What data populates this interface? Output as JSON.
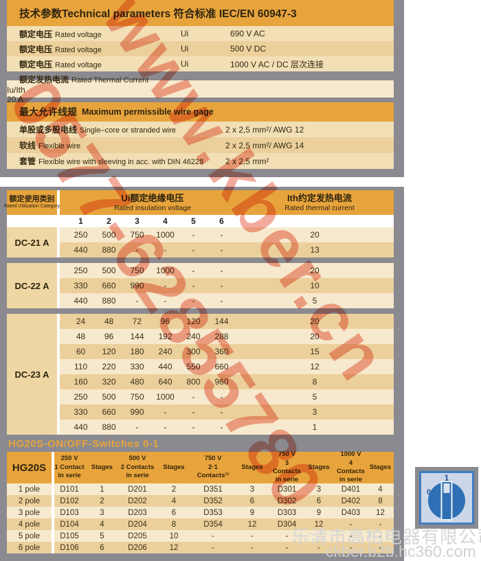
{
  "colors": {
    "accent_orange": "#E8A43C",
    "page_gray": "#8A8A90",
    "row_cream": "#F7E9CD",
    "row_tan": "#ECD09C",
    "switch_blue": "#2E6FB5"
  },
  "watermark": {
    "diag_line1": "www.kber.cn",
    "diag_line2": "0577-62855780",
    "company": "乐清市高柏电器有限公司",
    "site": "ckber.b2b.hc360.com"
  },
  "tech_params": {
    "title": "技术参数Technical parameters 符合标准 IEC/EN 60947-3",
    "rows": [
      {
        "zh": "额定电压",
        "en": "Rated voltage",
        "sym": "Ui",
        "val": "690 V AC"
      },
      {
        "zh": "额定电压",
        "en": "Rated voltage",
        "sym": "Ui",
        "val": "500 V DC"
      },
      {
        "zh": "额定电压",
        "en": "Rated voltage",
        "sym": "Ui",
        "val": "1000 V AC / DC 层次连接"
      }
    ],
    "thermal_row": {
      "zh": "额定发热电流",
      "en": "Rated Thermal Current",
      "sym": "Iu/Ith",
      "val": "20 A"
    }
  },
  "wire_gage": {
    "title_zh": "最大允许线规",
    "title_en": "Maximum permissible wire gage",
    "rows": [
      {
        "zh": "单股或多股电线",
        "en": "Single–core or stranded wire",
        "val": "2 x 2,5 mm²/ AWG 12"
      },
      {
        "zh": "软线",
        "en": "Flexible wire",
        "val": "2 x 2,5 mm²/ AWG 14"
      },
      {
        "zh": "套管",
        "en": "Flexible wire with sleeving in acc. with DIN 46228",
        "val": "2 x 2,5 mm²"
      }
    ]
  },
  "utilization_table": {
    "col1_zh": "额定使用类别",
    "col1_en": "Rated Utilization Category",
    "col2_zh": "Ui额定绝缘电压",
    "col2_en": "Rated insulation voltage",
    "col3_zh": "Ith约定发热电流",
    "col3_en": "Rated thermal current",
    "number_headers": [
      "1",
      "2",
      "3",
      "4",
      "5",
      "6"
    ],
    "blocks": [
      {
        "category": "DC-21 A",
        "rows": [
          {
            "values": [
              "250",
              "500",
              "750",
              "1000",
              "-",
              "-"
            ],
            "ith": "20"
          },
          {
            "values": [
              "440",
              "880",
              "-",
              "-",
              "-",
              "-"
            ],
            "ith": "13"
          }
        ]
      },
      {
        "category": "DC-22 A",
        "rows": [
          {
            "values": [
              "250",
              "500",
              "750",
              "1000",
              "-",
              "-"
            ],
            "ith": "20"
          },
          {
            "values": [
              "330",
              "660",
              "990",
              "-",
              "-",
              "-"
            ],
            "ith": "10"
          },
          {
            "values": [
              "440",
              "880",
              "-",
              "-",
              "-",
              "-"
            ],
            "ith": "5"
          }
        ]
      },
      {
        "category": "DC-23 A",
        "rows": [
          {
            "values": [
              "24",
              "48",
              "72",
              "96",
              "120",
              "144"
            ],
            "ith": "20"
          },
          {
            "values": [
              "48",
              "96",
              "144",
              "192",
              "240",
              "288"
            ],
            "ith": "20"
          },
          {
            "values": [
              "60",
              "120",
              "180",
              "240",
              "300",
              "360"
            ],
            "ith": "15"
          },
          {
            "values": [
              "110",
              "220",
              "330",
              "440",
              "550",
              "660"
            ],
            "ith": "12"
          },
          {
            "values": [
              "160",
              "320",
              "480",
              "640",
              "800",
              "960"
            ],
            "ith": "8"
          },
          {
            "values": [
              "250",
              "500",
              "750",
              "1000",
              "-",
              "-"
            ],
            "ith": "5"
          },
          {
            "values": [
              "330",
              "660",
              "990",
              "-",
              "-",
              "-"
            ],
            "ith": "3"
          },
          {
            "values": [
              "440",
              "880",
              "-",
              "-",
              "-",
              "-"
            ],
            "ith": "1"
          }
        ]
      }
    ]
  },
  "switch_table": {
    "title": "HG20S-ON/OFF-Switches 0-1",
    "corner_label": "HG20S",
    "columns": [
      {
        "lines": [
          "250 V",
          "1 Contact",
          "in serie"
        ]
      },
      {
        "lines": [
          "Stages"
        ]
      },
      {
        "lines": [
          "500 V",
          "2 Contacts",
          "in serie"
        ]
      },
      {
        "lines": [
          "Stages"
        ]
      },
      {
        "lines": [
          "750 V",
          "2·1",
          "Contacts¹⁾"
        ]
      },
      {
        "lines": [
          "Stages"
        ]
      },
      {
        "lines": [
          "750 V",
          "3 Contacts",
          "in serie"
        ]
      },
      {
        "lines": [
          "Stages"
        ]
      },
      {
        "lines": [
          "1000 V",
          "4 Contacts",
          "in serie"
        ]
      },
      {
        "lines": [
          "Stages"
        ]
      }
    ],
    "rows": [
      {
        "label": "1 pole",
        "values": [
          "D101",
          "1",
          "D201",
          "2",
          "D351",
          "3",
          "D301",
          "3",
          "D401",
          "4"
        ]
      },
      {
        "label": "2 pole",
        "values": [
          "D102",
          "2",
          "D202",
          "4",
          "D352",
          "6",
          "D302",
          "6",
          "D402",
          "8"
        ]
      },
      {
        "label": "3 pole",
        "values": [
          "D103",
          "3",
          "D203",
          "6",
          "D353",
          "9",
          "D303",
          "9",
          "D403",
          "12"
        ]
      },
      {
        "label": "4 pole",
        "values": [
          "D104",
          "4",
          "D204",
          "8",
          "D354",
          "12",
          "D304",
          "12",
          "-",
          "-"
        ]
      },
      {
        "label": "5 pole",
        "values": [
          "D105",
          "5",
          "D205",
          "10",
          "-",
          "-",
          "-",
          "-",
          "-",
          "-"
        ]
      },
      {
        "label": "6 pole",
        "values": [
          "D106",
          "6",
          "D206",
          "12",
          "-",
          "-",
          "-",
          "-",
          "-",
          "-"
        ]
      }
    ]
  },
  "switch_icon": {
    "on_label": "1",
    "off_label": "0"
  }
}
